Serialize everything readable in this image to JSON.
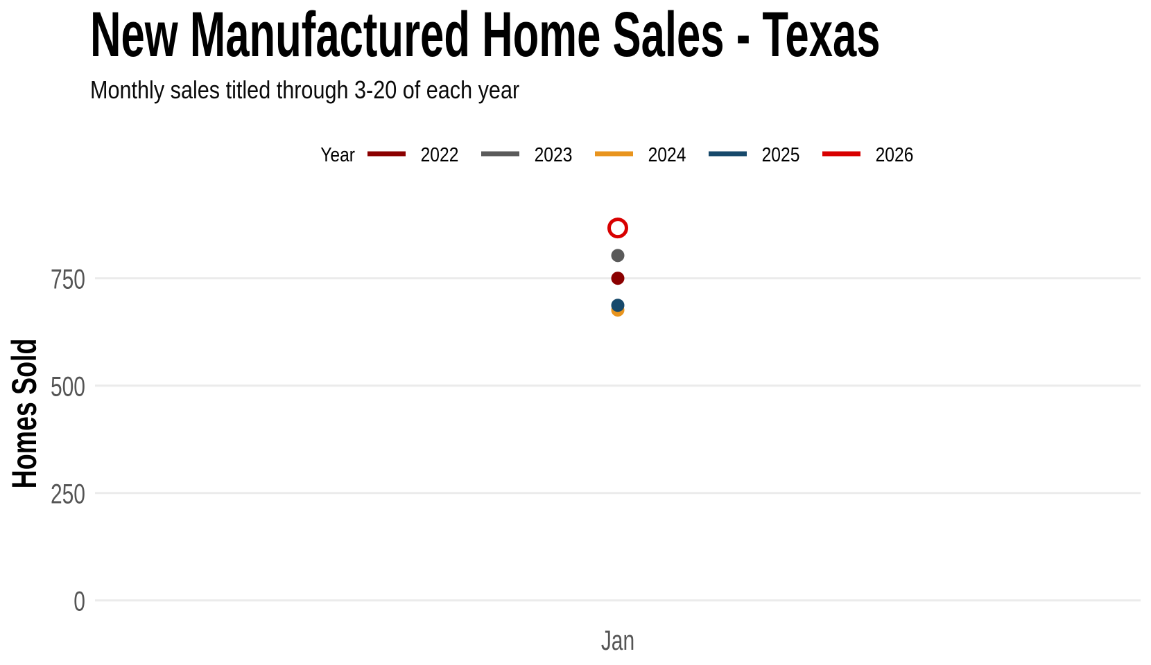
{
  "title": "New Manufactured Home Sales - Texas",
  "subtitle": "Monthly sales titled through 3-20 of each year",
  "legend": {
    "title": "Year",
    "position": "top-center"
  },
  "chart_data": {
    "type": "scatter",
    "categories": [
      "Jan"
    ],
    "series": [
      {
        "name": "2022",
        "color": "#8B0000",
        "marker": "filled",
        "values": [
          750
        ]
      },
      {
        "name": "2023",
        "color": "#5A5A5A",
        "marker": "filled",
        "values": [
          803
        ]
      },
      {
        "name": "2024",
        "color": "#E8941E",
        "marker": "filled",
        "values": [
          676
        ]
      },
      {
        "name": "2025",
        "color": "#17496B",
        "marker": "filled",
        "values": [
          687
        ]
      },
      {
        "name": "2026",
        "color": "#D80000",
        "marker": "open",
        "values": [
          867
        ]
      }
    ],
    "xlabel": "",
    "ylabel": "Homes Sold",
    "yticks": [
      0,
      250,
      500,
      750
    ],
    "ylim": [
      0,
      1000
    ],
    "grid": "horizontal-only",
    "legend_position": "top"
  },
  "colors": {
    "background": "#FFFFFF",
    "grid": "#EBEBEB",
    "tick_text": "#555555",
    "title_text": "#000000"
  }
}
